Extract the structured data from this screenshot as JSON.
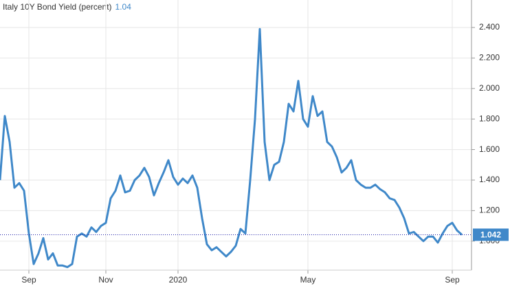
{
  "chart_data": {
    "type": "line",
    "title": "Italy 10Y Bond Yield (percent)",
    "title_value": 1.04,
    "categories": [
      null,
      null,
      null,
      null,
      null,
      null,
      "Sep",
      null,
      null,
      null,
      null,
      null,
      null,
      null,
      null,
      null,
      null,
      null,
      null,
      null,
      null,
      null,
      "Nov",
      null,
      null,
      null,
      null,
      null,
      null,
      null,
      null,
      null,
      null,
      null,
      null,
      null,
      null,
      "2020",
      null,
      null,
      null,
      null,
      null,
      null,
      null,
      null,
      null,
      null,
      null,
      null,
      null,
      null,
      null,
      null,
      null,
      null,
      null,
      null,
      null,
      null,
      null,
      null,
      null,
      null,
      "May",
      null,
      null,
      null,
      null,
      null,
      null,
      null,
      null,
      null,
      null,
      null,
      null,
      null,
      null,
      null,
      null,
      null,
      null,
      null,
      null,
      null,
      null,
      null,
      null,
      null,
      null,
      null,
      null,
      null,
      "Sep",
      null,
      null
    ],
    "series": [
      {
        "name": "Italy 10Y Bond Yield",
        "color": "#3f88c9",
        "values": [
          1.4,
          1.82,
          1.65,
          1.35,
          1.38,
          1.33,
          1.05,
          0.85,
          0.92,
          1.02,
          0.88,
          0.92,
          0.84,
          0.84,
          0.83,
          0.85,
          1.03,
          1.05,
          1.03,
          1.09,
          1.06,
          1.1,
          1.12,
          1.28,
          1.33,
          1.43,
          1.32,
          1.33,
          1.4,
          1.43,
          1.48,
          1.42,
          1.3,
          1.38,
          1.45,
          1.53,
          1.42,
          1.37,
          1.41,
          1.38,
          1.43,
          1.35,
          1.15,
          0.98,
          0.94,
          0.96,
          0.93,
          0.9,
          0.93,
          0.97,
          1.08,
          1.05,
          1.4,
          1.8,
          2.39,
          1.65,
          1.4,
          1.5,
          1.52,
          1.65,
          1.9,
          1.85,
          2.05,
          1.8,
          1.75,
          1.95,
          1.82,
          1.85,
          1.65,
          1.62,
          1.55,
          1.45,
          1.48,
          1.53,
          1.4,
          1.37,
          1.35,
          1.35,
          1.37,
          1.34,
          1.32,
          1.28,
          1.27,
          1.22,
          1.15,
          1.05,
          1.06,
          1.03,
          1.0,
          1.03,
          1.03,
          0.99,
          1.05,
          1.1,
          1.12,
          1.07,
          1.042
        ]
      }
    ],
    "last_value": 1.042,
    "ylim": [
      0.81,
      2.58
    ],
    "yticks": [
      {
        "value": 1,
        "label": "1.000"
      },
      {
        "value": 1.2,
        "label": "1.200"
      },
      {
        "value": 1.4,
        "label": "1.400"
      },
      {
        "value": 1.6,
        "label": "1.600"
      },
      {
        "value": 1.8,
        "label": "1.800"
      },
      {
        "value": 2,
        "label": "2.000"
      },
      {
        "value": 2.2,
        "label": "2.200"
      },
      {
        "value": 2.4,
        "label": "2.400"
      }
    ],
    "grid": true
  }
}
